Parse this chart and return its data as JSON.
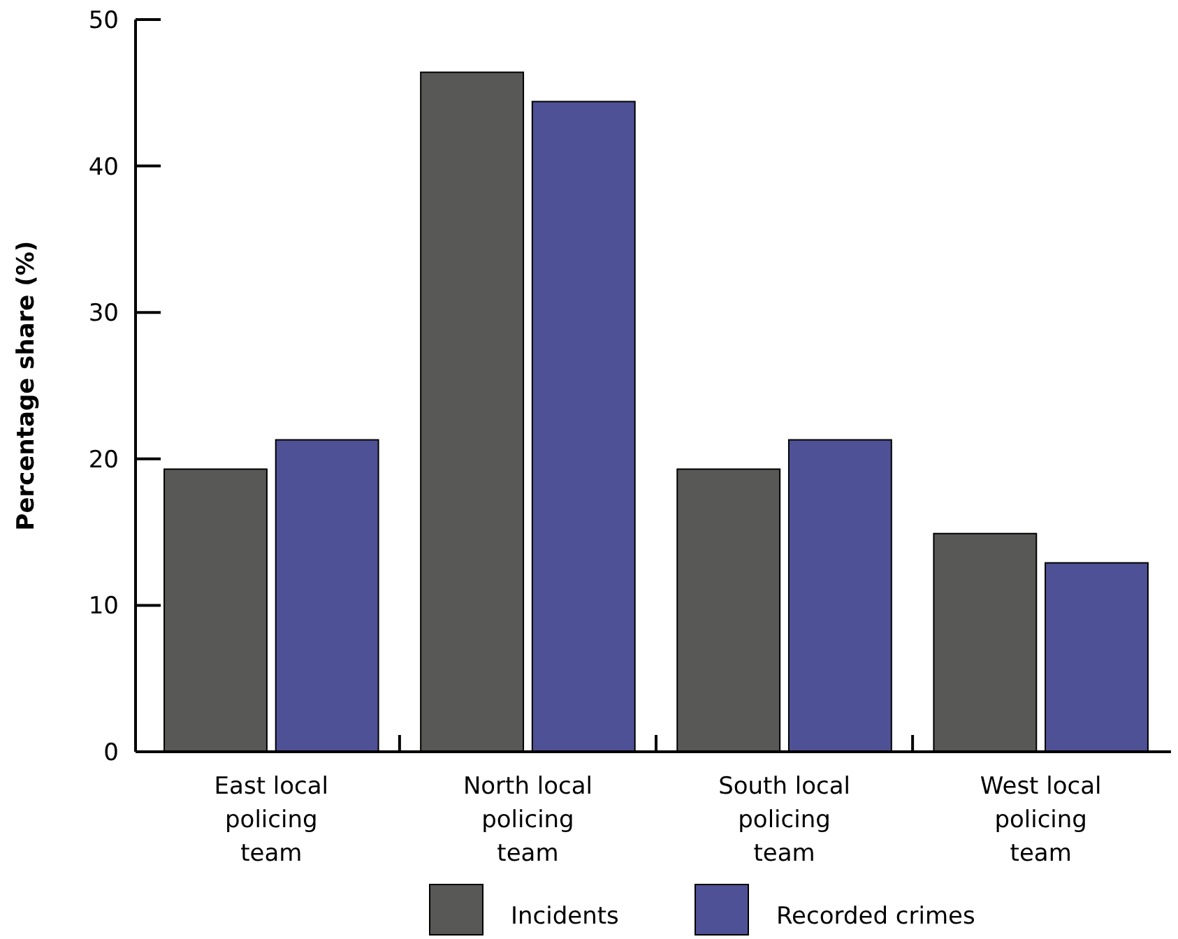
{
  "chart_data": {
    "type": "bar",
    "ylabel": "Percentage share (%)",
    "categories": [
      "East local policing team",
      "North local policing team",
      "South local policing team",
      "West local policing team"
    ],
    "series": [
      {
        "name": "Incidents",
        "color": "#585857",
        "values": [
          19.3,
          46.4,
          19.3,
          14.9
        ]
      },
      {
        "name": "Recorded crimes",
        "color": "#4f5196",
        "values": [
          21.3,
          44.4,
          21.3,
          12.9
        ]
      }
    ],
    "ylim": [
      0,
      50
    ],
    "yticks": [
      0,
      10,
      20,
      30,
      40,
      50
    ],
    "legend": "bottom",
    "grid": false
  }
}
